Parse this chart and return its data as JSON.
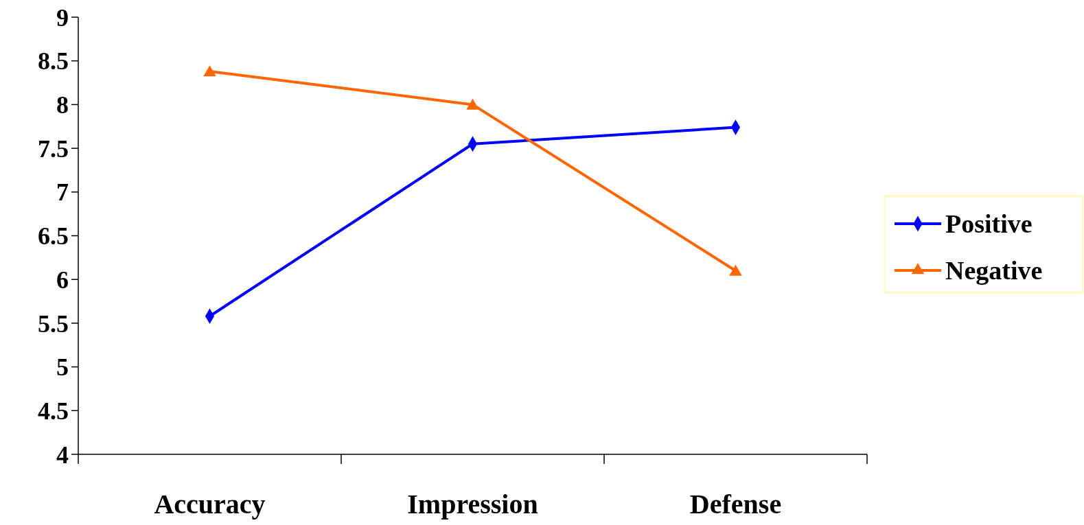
{
  "chart_data": {
    "type": "line",
    "categories": [
      "Accuracy",
      "Impression",
      "Defense"
    ],
    "series": [
      {
        "name": "Positive",
        "color": "#0000ff",
        "marker": "diamond",
        "values": [
          5.58,
          7.55,
          7.74
        ]
      },
      {
        "name": "Negative",
        "color": "#ff6600",
        "marker": "triangle",
        "values": [
          8.38,
          8.0,
          6.1
        ]
      }
    ],
    "ylim": [
      4,
      9
    ],
    "yticks": [
      4,
      4.5,
      5,
      5.5,
      6,
      6.5,
      7,
      7.5,
      8,
      8.5,
      9
    ],
    "grid": false,
    "legend": "right",
    "line_style": "solid"
  }
}
